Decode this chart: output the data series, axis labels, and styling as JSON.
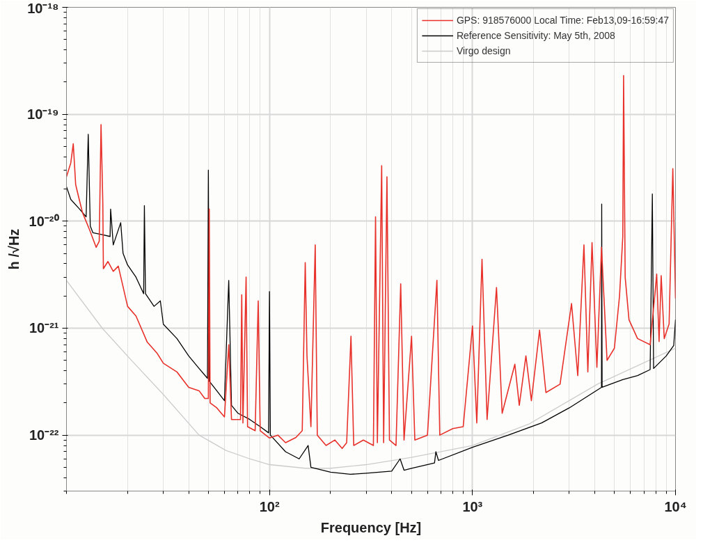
{
  "chart_data": {
    "type": "line",
    "xlabel": "Frequency [Hz]",
    "ylabel": "h /√Hz",
    "log": "xy",
    "grid": true,
    "legend": "top right",
    "line_style": "solid",
    "marker": "none",
    "xlim": [
      10,
      10000
    ],
    "ylim": [
      3e-23,
      1e-18
    ],
    "xticks": [
      {
        "value": 100,
        "label": "10²"
      },
      {
        "value": 1000,
        "label": "10³"
      },
      {
        "value": 10000,
        "label": "10⁴"
      }
    ],
    "yticks": [
      {
        "value": 1e-22,
        "label": "10⁻²²"
      },
      {
        "value": 1e-21,
        "label": "10⁻²¹"
      },
      {
        "value": 1e-20,
        "label": "10⁻²⁰"
      },
      {
        "value": 1e-19,
        "label": "10⁻¹⁹"
      },
      {
        "value": 1e-18,
        "label": "10⁻¹⁸"
      }
    ],
    "series": [
      {
        "name": "GPS: 918576000 Local Time: Feb13,09-16:59:47",
        "color": "#e8312a",
        "x": [
          10,
          10.5,
          10.8,
          11.1,
          11.5,
          12,
          13,
          14,
          14.5,
          14.8,
          15.1,
          15.2,
          16,
          17,
          18,
          20,
          22,
          25,
          28,
          30,
          35,
          40,
          45,
          48,
          50,
          50.5,
          51,
          55,
          60,
          63,
          65,
          72,
          73,
          74,
          76.7,
          78,
          85,
          88,
          90,
          100,
          110,
          120,
          135,
          145,
          150,
          153,
          160,
          168,
          172,
          190,
          210,
          228,
          240,
          252,
          260,
          290,
          325,
          333,
          340,
          357,
          365,
          379,
          390,
          420,
          443,
          460,
          501,
          520,
          600,
          668,
          690,
          800,
          900,
          1000,
          1050,
          1114,
          1180,
          1313,
          1400,
          1617,
          1700,
          1833,
          1950,
          2140,
          2300,
          2700,
          3075,
          3300,
          3540,
          3700,
          3880,
          4100,
          4320,
          4600,
          5000,
          5300,
          5500,
          5550,
          5650,
          5900,
          6500,
          7500,
          8080,
          8300,
          8500,
          8800,
          9300,
          9700,
          10000
        ],
        "values": [
          2.6e-20,
          3.5e-20,
          5.3e-20,
          2.2e-20,
          1.66e-20,
          1.2e-20,
          8.3e-21,
          5.7e-21,
          6.5e-21,
          8e-20,
          1.5e-20,
          3.6e-21,
          4.2e-21,
          3.4e-21,
          3.8e-21,
          1.6e-21,
          1.3e-21,
          7.4e-22,
          5.8e-22,
          4.7e-22,
          3.9e-22,
          2.8e-22,
          2.6e-22,
          2.2e-22,
          2.2e-22,
          1.3e-20,
          2e-22,
          1.8e-22,
          1.48e-22,
          7e-22,
          1.4e-22,
          1.4e-22,
          2.05e-21,
          1.3e-22,
          3e-21,
          1.2e-22,
          1.1e-22,
          1.8e-21,
          1.1e-22,
          9.4e-23,
          1e-22,
          8.5e-23,
          9.5e-23,
          1.1e-22,
          4.1e-21,
          5.5e-22,
          1.2e-22,
          6e-21,
          1e-22,
          8e-23,
          9e-23,
          7.5e-23,
          8.5e-23,
          8.4e-22,
          8e-23,
          9e-23,
          8e-23,
          1.1e-20,
          8.5e-23,
          3.3e-20,
          8.5e-23,
          2.6e-20,
          9e-23,
          8e-23,
          2.6e-21,
          9e-23,
          8.4e-22,
          9e-23,
          1e-22,
          2.8e-21,
          1e-22,
          1.15e-22,
          1.2e-22,
          1.05e-21,
          1.3e-22,
          4.4e-21,
          1.4e-22,
          2.4e-21,
          1.6e-22,
          4.6e-22,
          1.9e-22,
          5.5e-22,
          2.1e-22,
          9.6e-22,
          2.5e-22,
          3e-22,
          1.7e-21,
          3.6e-22,
          6e-21,
          3.9e-22,
          6.3e-21,
          4.3e-22,
          5.7e-21,
          5e-22,
          6.5e-22,
          2e-21,
          7.2e-21,
          2.3e-19,
          3e-21,
          1.2e-21,
          8e-22,
          7e-22,
          3.2e-21,
          7.5e-22,
          3.1e-21,
          8e-22,
          1.1e-21,
          3.1e-20,
          1.9e-21
        ]
      },
      {
        "name": "Reference Sensitivity: May 5th, 2008",
        "color": "#000000",
        "x": [
          10,
          10.5,
          11.6,
          12.5,
          12.8,
          13.1,
          13.5,
          15,
          16.4,
          16.5,
          17,
          18.5,
          19,
          20,
          22,
          24,
          24.2,
          24.5,
          27,
          29,
          30,
          35,
          40,
          45,
          49.5,
          50,
          50.5,
          55,
          60,
          63,
          65,
          70,
          80,
          90,
          99,
          100,
          101,
          120,
          140,
          155,
          160,
          200,
          250,
          300,
          400,
          440,
          460,
          500,
          650,
          660,
          680,
          1000,
          1500,
          2190,
          3000,
          4320,
          4330,
          4350,
          5500,
          6500,
          7500,
          7690,
          7800,
          9000,
          9800,
          10000
        ],
        "values": [
          2.1e-20,
          1.6e-20,
          1.3e-20,
          1.1e-20,
          6.5e-20,
          9e-21,
          7.8e-21,
          7.5e-21,
          7.2e-21,
          1.3e-20,
          6e-21,
          9.7e-21,
          5e-21,
          3.9e-21,
          3e-21,
          2.1e-21,
          1.4e-20,
          2.1e-21,
          1.6e-21,
          1.8e-21,
          1.09e-21,
          8e-22,
          5.5e-22,
          4.2e-22,
          3.4e-22,
          3e-20,
          3.2e-22,
          2.6e-22,
          2.1e-22,
          2.8e-21,
          1.9e-22,
          1.6e-22,
          1.4e-22,
          1.2e-22,
          1.05e-22,
          2.2e-21,
          1e-22,
          7e-23,
          6e-23,
          8e-23,
          5e-23,
          4.5e-23,
          4.3e-23,
          4.4e-23,
          4.6e-23,
          6e-23,
          4.7e-23,
          4.9e-23,
          5.5e-23,
          7e-23,
          5.8e-23,
          7.7e-23,
          1e-22,
          1.3e-22,
          1.8e-22,
          2.8e-22,
          1.45e-20,
          2.8e-22,
          3.3e-22,
          3.6e-22,
          4.1e-22,
          1.8e-20,
          4.2e-22,
          5.5e-22,
          6.9e-22,
          1.2e-21
        ]
      },
      {
        "name": "Virgo design",
        "color": "#cccccc",
        "x": [
          10,
          15,
          20.7,
          30,
          45,
          61,
          80,
          100,
          150,
          200,
          300,
          500,
          1000,
          1900,
          4130,
          10000
        ],
        "values": [
          2.8e-21,
          1e-21,
          5.1e-22,
          2.4e-22,
          1e-22,
          7.2e-23,
          6e-23,
          5.3e-23,
          4.9e-23,
          4.9e-23,
          5.3e-23,
          6.2e-23,
          8e-23,
          1.27e-22,
          3e-22,
          6.5e-22
        ]
      }
    ]
  }
}
